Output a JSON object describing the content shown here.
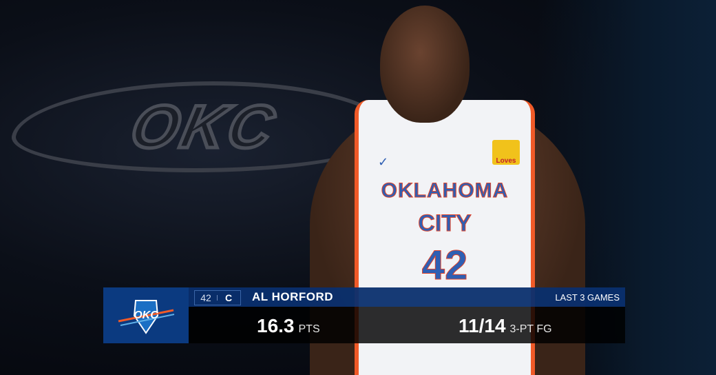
{
  "scene": {
    "watermark_logo": "OKC",
    "jersey": {
      "line1": "OKLAHOMA",
      "line2": "CITY",
      "number": "42",
      "sponsor": "Loves"
    }
  },
  "lower_third": {
    "team_logo": "OKC",
    "jersey_number": "42",
    "position": "C",
    "player_name": "AL HORFORD",
    "context": "LAST 3 GAMES",
    "stats": [
      {
        "value": "16.3",
        "label": "PTS"
      },
      {
        "value": "11/14",
        "label": "3-PT FG"
      }
    ],
    "colors": {
      "primary": "#0b3a80",
      "accent": "#f05a28"
    }
  }
}
